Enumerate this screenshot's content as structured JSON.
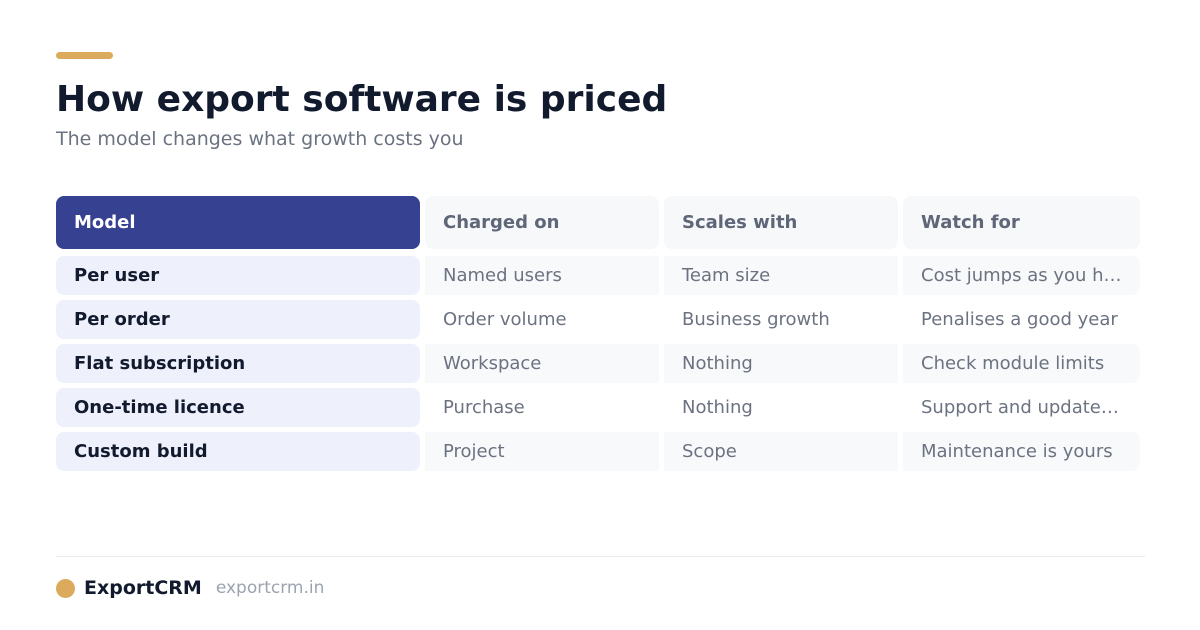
{
  "header": {
    "title": "How export software is priced",
    "subtitle": "The model changes what growth costs you"
  },
  "table": {
    "columns": [
      "Model",
      "Charged on",
      "Scales with",
      "Watch for"
    ],
    "rows": [
      {
        "model": "Per user",
        "charged_on": "Named users",
        "scales_with": "Team size",
        "watch_for": "Cost jumps as you hire"
      },
      {
        "model": "Per order",
        "charged_on": "Order volume",
        "scales_with": "Business growth",
        "watch_for": "Penalises a good year"
      },
      {
        "model": "Flat subscription",
        "charged_on": "Workspace",
        "scales_with": "Nothing",
        "watch_for": "Check module limits"
      },
      {
        "model": "One-time licence",
        "charged_on": "Purchase",
        "scales_with": "Nothing",
        "watch_for": "Support and updates extra"
      },
      {
        "model": "Custom build",
        "charged_on": "Project",
        "scales_with": "Scope",
        "watch_for": "Maintenance is yours"
      }
    ]
  },
  "footer": {
    "brand": "ExportCRM",
    "url": "exportcrm.in"
  },
  "colors": {
    "accent": "#dcaa5c",
    "primary": "#364291",
    "model_cell_bg": "#eef0fb",
    "title": "#121a2e"
  }
}
